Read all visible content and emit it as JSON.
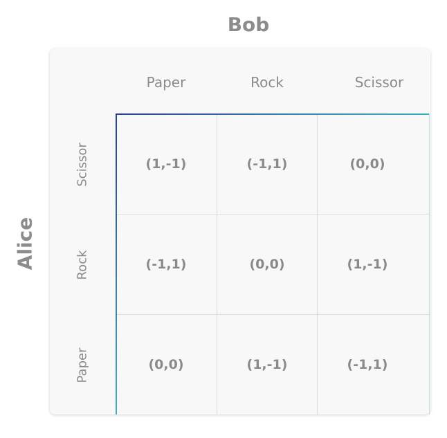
{
  "column_player": "Bob",
  "row_player": "Alice",
  "columns": [
    "Paper",
    "Rock",
    "Scissor"
  ],
  "rows": [
    "Scissor",
    "Rock",
    "Paper"
  ],
  "payoffs": [
    [
      "(1,-1)",
      "(-1,1)",
      "(0,0)"
    ],
    [
      "(-1,1)",
      "(0,0)",
      "(1,-1)"
    ],
    [
      "(0,0)",
      "(1,-1)",
      "(-1,1)"
    ]
  ],
  "colors": {
    "axis_start": "#2a3f8f",
    "axis_end": "#3fb0c4",
    "text": "#8a8a8a",
    "panel": "#f8f8f8",
    "grid": "#dcdcdc"
  }
}
